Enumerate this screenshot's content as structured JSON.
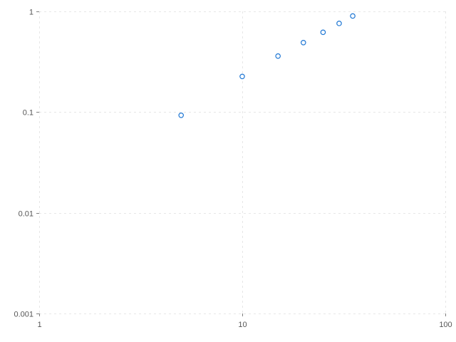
{
  "chart_data": {
    "type": "scatter",
    "title": "",
    "xlabel": "",
    "ylabel": "",
    "x_scale": "log",
    "y_scale": "log",
    "xlim": [
      1,
      100
    ],
    "ylim": [
      0.001,
      1
    ],
    "grid": true,
    "x_ticks": [
      {
        "value": 1,
        "label": "1"
      },
      {
        "value": 10,
        "label": "10"
      },
      {
        "value": 100,
        "label": "100"
      }
    ],
    "y_ticks": [
      {
        "value": 0.001,
        "label": "0.001"
      },
      {
        "value": 0.01,
        "label": "0.01"
      },
      {
        "value": 0.1,
        "label": "0.1"
      },
      {
        "value": 1,
        "label": "1"
      }
    ],
    "series": [
      {
        "color": "#1f77d4",
        "marker": "circle-open",
        "x": [
          5,
          10,
          15,
          20,
          25,
          30,
          35
        ],
        "y": [
          0.093,
          0.226,
          0.36,
          0.49,
          0.62,
          0.76,
          0.9
        ]
      }
    ]
  }
}
